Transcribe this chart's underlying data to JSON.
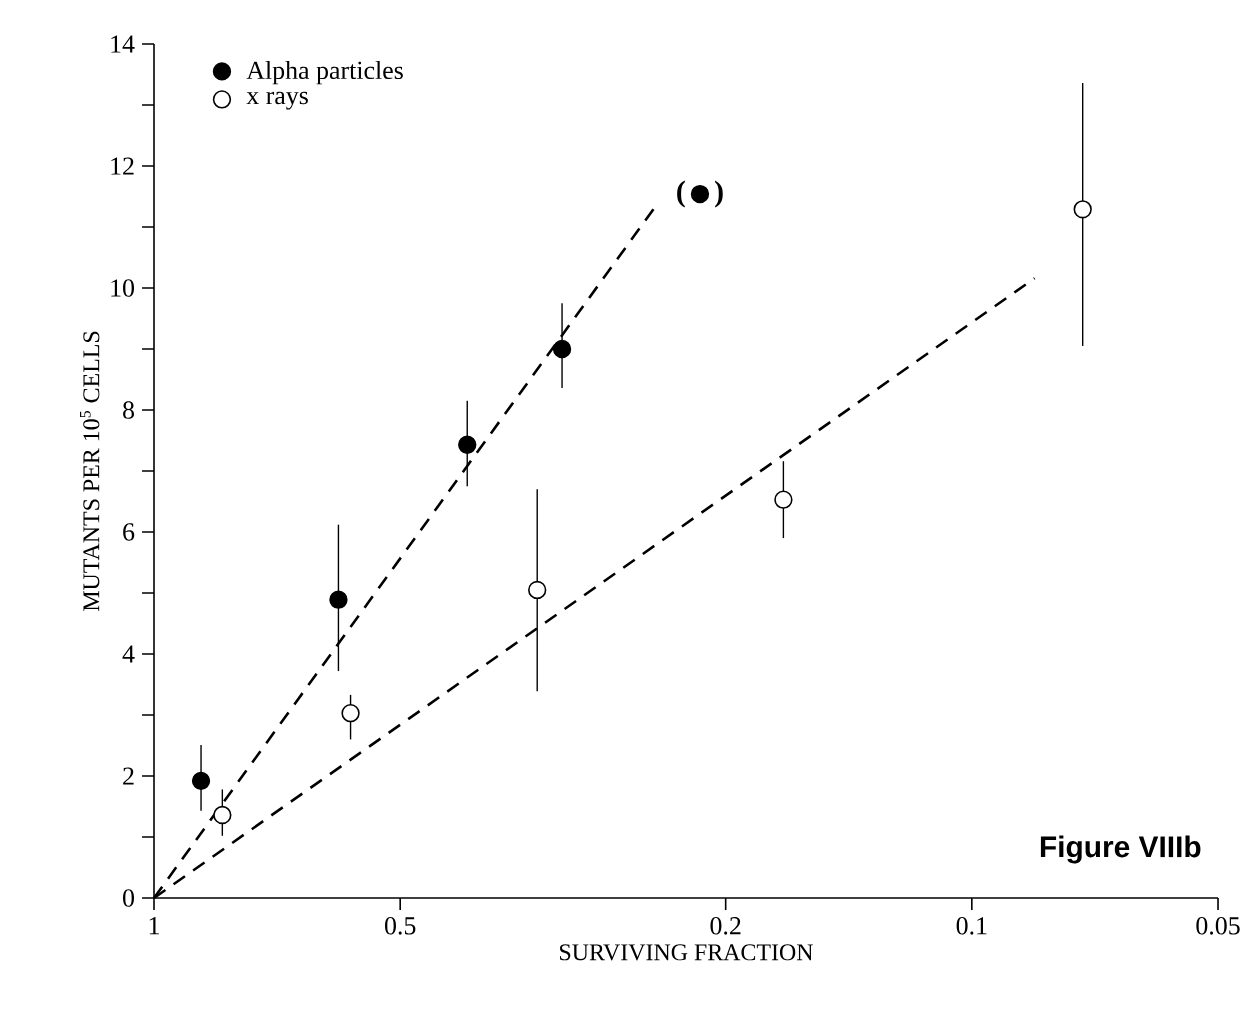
{
  "chart_data": {
    "type": "scatter",
    "xlabel": "SURVIVING FRACTION",
    "ylabel": "MUTANTS PER 10$^{5}$ CELLS",
    "log": "x",
    "xlim": [
      1,
      0.05
    ],
    "ylim": [
      0,
      14
    ],
    "xticks": [
      1,
      0.5,
      0.2,
      0.1,
      0.05
    ],
    "yticks": [
      0,
      {
        "value": 1,
        "label": null
      },
      2,
      {
        "value": 3,
        "label": null
      },
      4,
      {
        "value": 5,
        "label": null
      },
      6,
      {
        "value": 7,
        "label": null
      },
      8,
      {
        "value": 9,
        "label": null
      },
      10,
      {
        "value": 11,
        "label": null
      },
      12,
      {
        "value": 13,
        "label": null
      },
      14
    ],
    "legend": "top left",
    "series": [
      {
        "name": "Alpha particles",
        "color": "#000000",
        "marker": "circle",
        "x": [
          0.876,
          0.595,
          0.414,
          0.317,
          0.215
        ],
        "values": [
          1.92,
          4.89,
          7.43,
          9.0,
          11.54
        ],
        "errors": [
          [
            1.43,
            2.51
          ],
          [
            3.72,
            6.12
          ],
          [
            6.75,
            8.15
          ],
          [
            8.36,
            9.75
          ],
          null
        ]
      },
      {
        "name": "x rays",
        "color": "#ffffff",
        "marker": "circle",
        "x": [
          0.825,
          0.575,
          0.34,
          0.17,
          0.0732
        ],
        "values": [
          1.36,
          3.03,
          5.05,
          6.53,
          11.29
        ],
        "errors": [
          [
            1.02,
            1.78
          ],
          [
            2.6,
            3.33
          ],
          [
            3.39,
            6.7
          ],
          [
            5.9,
            7.16
          ],
          [
            9.05,
            13.36
          ]
        ]
      },
      {
        "type": "line",
        "color": "#000000",
        "line_style": "dashed",
        "marker": "none",
        "x": [
          1,
          0.2436
        ],
        "values": [
          0,
          11.34
        ]
      },
      {
        "type": "line",
        "color": "#000000",
        "line_style": "dashed",
        "marker": "none",
        "x": [
          1,
          0.0838
        ],
        "values": [
          0,
          10.16
        ]
      }
    ],
    "annotations": [
      "Figure VIIIb",
      {
        "text": "( )",
        "x": 0.215,
        "y": 11.54
      }
    ]
  }
}
